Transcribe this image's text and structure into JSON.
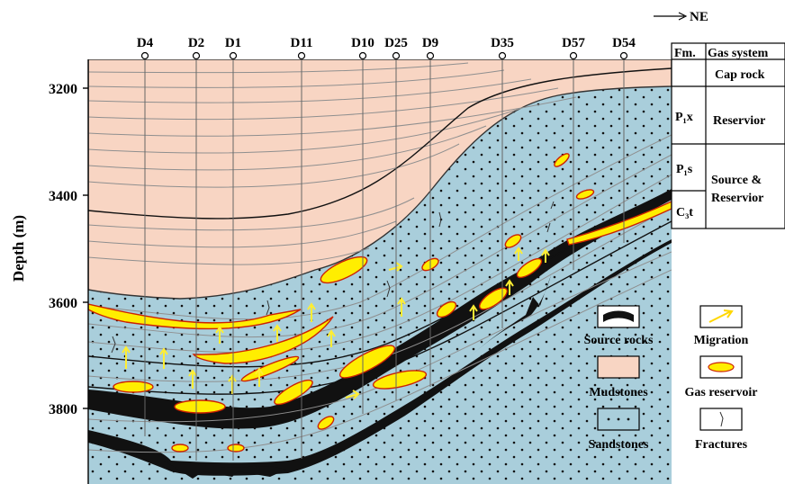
{
  "direction": {
    "arrow": "⟶",
    "label": "NE"
  },
  "wells": [
    "D4",
    "D2",
    "D1",
    "D11",
    "D10",
    "D25",
    "D9",
    "D35",
    "D57",
    "D54"
  ],
  "axis": {
    "ylabel": "Depth (m)",
    "ticks": [
      "3200",
      "3400",
      "3600",
      "3800"
    ]
  },
  "column": {
    "headers": {
      "fm": "Fm.",
      "gas_system": "Gas system"
    },
    "rows": [
      {
        "fm": "",
        "system": "Cap rock"
      },
      {
        "fm": "P₁x",
        "system": "Reservior"
      },
      {
        "fm": "P₁s",
        "system": "Source &"
      },
      {
        "fm": "C₃t",
        "system": "Reservior"
      }
    ]
  },
  "legend": {
    "source_rocks": "Source rocks",
    "migration": "Migration",
    "mudstones": "Mudstones",
    "gas_reservoir": "Gas reservoir",
    "sandstones": "Sandstones",
    "fractures": "Fractures"
  },
  "colors": {
    "mudstone": "#f8d5c3",
    "sandstone": "#a9cedb",
    "source_rock": "#111111",
    "gas": "#ffee00",
    "gas_outline": "#cc2200",
    "migration": "#ffee33",
    "layer_line": "#8f8f8f"
  }
}
